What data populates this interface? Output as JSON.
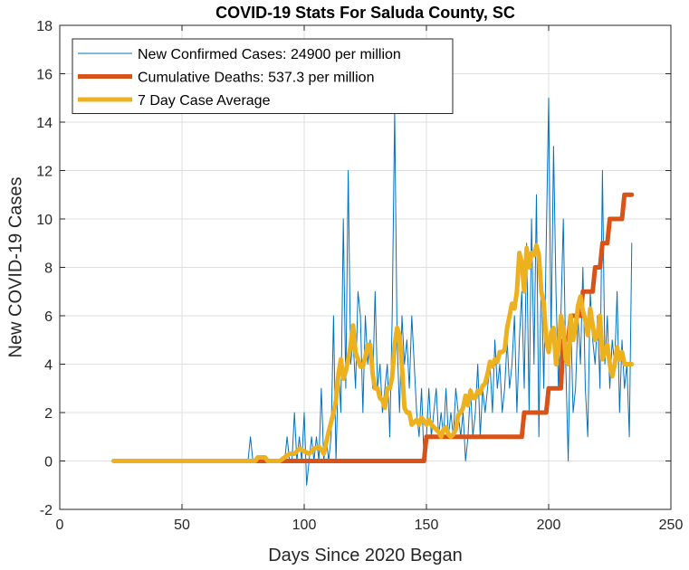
{
  "chart_data": {
    "type": "line",
    "title": "COVID-19 Stats For Saluda County, SC",
    "xlabel": "Days Since 2020 Began",
    "ylabel": "New COVID-19 Cases",
    "xlim": [
      0,
      250
    ],
    "ylim": [
      -2,
      18
    ],
    "xticks": [
      0,
      50,
      100,
      150,
      200,
      250
    ],
    "yticks": [
      -2,
      0,
      2,
      4,
      6,
      8,
      10,
      12,
      14,
      16,
      18
    ],
    "grid": true,
    "legend_position": "top-left",
    "series": [
      {
        "name": "New Confirmed Cases: 24900 per million",
        "color": "#0072BD",
        "style": "thin",
        "points": [
          [
            22,
            0
          ],
          [
            30,
            0
          ],
          [
            40,
            0
          ],
          [
            50,
            0
          ],
          [
            60,
            0
          ],
          [
            70,
            0
          ],
          [
            77,
            0
          ],
          [
            78,
            1
          ],
          [
            79,
            0
          ],
          [
            85,
            0
          ],
          [
            88,
            0
          ],
          [
            90,
            0
          ],
          [
            92,
            0
          ],
          [
            93,
            1
          ],
          [
            94,
            0
          ],
          [
            95,
            0
          ],
          [
            96,
            2
          ],
          [
            97,
            0
          ],
          [
            98,
            1
          ],
          [
            99,
            0
          ],
          [
            100,
            2
          ],
          [
            101,
            -1
          ],
          [
            102,
            0
          ],
          [
            103,
            1
          ],
          [
            104,
            0
          ],
          [
            105,
            1
          ],
          [
            106,
            0
          ],
          [
            107,
            3
          ],
          [
            108,
            0
          ],
          [
            109,
            1
          ],
          [
            110,
            0
          ],
          [
            111,
            1
          ],
          [
            112,
            6
          ],
          [
            113,
            0
          ],
          [
            114,
            4
          ],
          [
            115,
            2
          ],
          [
            116,
            10
          ],
          [
            117,
            3
          ],
          [
            118,
            12
          ],
          [
            119,
            4
          ],
          [
            120,
            5
          ],
          [
            121,
            3
          ],
          [
            122,
            7
          ],
          [
            123,
            6
          ],
          [
            124,
            2
          ],
          [
            125,
            6
          ],
          [
            126,
            4
          ],
          [
            127,
            5
          ],
          [
            128,
            3
          ],
          [
            129,
            7
          ],
          [
            130,
            3
          ],
          [
            131,
            4
          ],
          [
            132,
            2
          ],
          [
            133,
            3
          ],
          [
            134,
            4
          ],
          [
            135,
            1
          ],
          [
            136,
            6
          ],
          [
            137,
            14.5
          ],
          [
            138,
            5
          ],
          [
            139,
            2
          ],
          [
            140,
            6
          ],
          [
            141,
            4
          ],
          [
            142,
            5
          ],
          [
            143,
            3
          ],
          [
            144,
            6
          ],
          [
            145,
            4
          ],
          [
            146,
            2
          ],
          [
            147,
            1
          ],
          [
            148,
            3
          ],
          [
            149,
            0
          ],
          [
            150,
            1
          ],
          [
            151,
            3
          ],
          [
            152,
            1
          ],
          [
            153,
            2
          ],
          [
            154,
            3
          ],
          [
            155,
            1
          ],
          [
            156,
            2
          ],
          [
            157,
            1
          ],
          [
            158,
            3
          ],
          [
            159,
            1
          ],
          [
            160,
            2
          ],
          [
            161,
            1
          ],
          [
            162,
            3
          ],
          [
            163,
            2
          ],
          [
            164,
            1
          ],
          [
            165,
            2
          ],
          [
            166,
            0
          ],
          [
            167,
            1
          ],
          [
            168,
            3
          ],
          [
            169,
            1
          ],
          [
            170,
            2
          ],
          [
            171,
            4
          ],
          [
            172,
            1
          ],
          [
            173,
            3
          ],
          [
            174,
            2
          ],
          [
            175,
            3
          ],
          [
            176,
            4
          ],
          [
            177,
            2
          ],
          [
            178,
            5
          ],
          [
            179,
            3
          ],
          [
            180,
            4
          ],
          [
            181,
            2
          ],
          [
            182,
            3
          ],
          [
            183,
            5
          ],
          [
            184,
            3
          ],
          [
            185,
            4
          ],
          [
            186,
            6
          ],
          [
            187,
            2
          ],
          [
            188,
            5
          ],
          [
            189,
            7
          ],
          [
            190,
            3
          ],
          [
            191,
            9
          ],
          [
            192,
            2
          ],
          [
            193,
            10
          ],
          [
            194,
            4
          ],
          [
            195,
            11
          ],
          [
            196,
            1
          ],
          [
            197,
            8
          ],
          [
            198,
            3
          ],
          [
            199,
            9
          ],
          [
            200,
            15
          ],
          [
            201,
            5
          ],
          [
            202,
            13
          ],
          [
            203,
            7
          ],
          [
            204,
            3
          ],
          [
            205,
            6
          ],
          [
            206,
            10
          ],
          [
            207,
            4
          ],
          [
            208,
            0
          ],
          [
            209,
            6
          ],
          [
            210,
            2
          ],
          [
            211,
            3
          ],
          [
            212,
            6
          ],
          [
            213,
            4
          ],
          [
            214,
            8
          ],
          [
            215,
            3
          ],
          [
            216,
            1
          ],
          [
            217,
            7
          ],
          [
            218,
            5
          ],
          [
            219,
            4
          ],
          [
            220,
            6
          ],
          [
            221,
            3
          ],
          [
            222,
            12
          ],
          [
            223,
            4
          ],
          [
            224,
            6
          ],
          [
            225,
            3
          ],
          [
            226,
            5
          ],
          [
            227,
            4
          ],
          [
            228,
            7
          ],
          [
            229,
            2
          ],
          [
            230,
            5
          ],
          [
            231,
            3
          ],
          [
            232,
            4
          ],
          [
            233,
            1
          ],
          [
            234,
            9
          ]
        ]
      },
      {
        "name": "Cumulative Deaths: 537.3 per million",
        "color": "#D95319",
        "style": "thick",
        "points": [
          [
            80,
            0
          ],
          [
            149,
            0
          ],
          [
            150,
            1
          ],
          [
            189,
            1
          ],
          [
            190,
            2
          ],
          [
            199,
            2
          ],
          [
            200,
            3
          ],
          [
            205,
            3
          ],
          [
            206,
            5
          ],
          [
            208,
            5
          ],
          [
            209,
            6
          ],
          [
            213,
            6
          ],
          [
            214,
            7
          ],
          [
            216,
            7
          ],
          [
            217,
            7
          ],
          [
            218,
            7
          ],
          [
            219,
            8
          ],
          [
            221,
            8
          ],
          [
            222,
            9
          ],
          [
            223,
            9
          ],
          [
            224,
            9
          ],
          [
            225,
            10
          ],
          [
            229,
            10
          ],
          [
            230,
            10
          ],
          [
            231,
            11
          ],
          [
            234,
            11
          ]
        ]
      },
      {
        "name": "7 Day Case Average",
        "color": "#EDB120",
        "style": "thick",
        "points": [
          [
            22,
            0
          ],
          [
            40,
            0
          ],
          [
            60,
            0
          ],
          [
            75,
            0
          ],
          [
            80,
            0
          ],
          [
            81,
            0.15
          ],
          [
            84,
            0.15
          ],
          [
            85,
            0
          ],
          [
            90,
            0
          ],
          [
            92,
            0.15
          ],
          [
            94,
            0.3
          ],
          [
            96,
            0.3
          ],
          [
            98,
            0.5
          ],
          [
            100,
            0.4
          ],
          [
            102,
            0.3
          ],
          [
            104,
            0.5
          ],
          [
            106,
            0.6
          ],
          [
            108,
            0.3
          ],
          [
            110,
            1.2
          ],
          [
            112,
            2.0
          ],
          [
            113,
            2.5
          ],
          [
            114,
            3.6
          ],
          [
            115,
            4.2
          ],
          [
            116,
            3.4
          ],
          [
            117,
            3.7
          ],
          [
            118,
            4.2
          ],
          [
            119,
            4.8
          ],
          [
            120,
            5.6
          ],
          [
            121,
            4.5
          ],
          [
            122,
            4.2
          ],
          [
            123,
            3.9
          ],
          [
            124,
            3.9
          ],
          [
            125,
            4.3
          ],
          [
            126,
            4.8
          ],
          [
            127,
            4.8
          ],
          [
            128,
            3.6
          ],
          [
            129,
            3.0
          ],
          [
            130,
            3.0
          ],
          [
            131,
            2.6
          ],
          [
            132,
            2.5
          ],
          [
            133,
            2.2
          ],
          [
            134,
            3.0
          ],
          [
            135,
            3.0
          ],
          [
            136,
            3.5
          ],
          [
            137,
            4.8
          ],
          [
            138,
            5.5
          ],
          [
            139,
            5.2
          ],
          [
            140,
            3.9
          ],
          [
            141,
            2.2
          ],
          [
            142,
            2.0
          ],
          [
            143,
            2.0
          ],
          [
            144,
            1.5
          ],
          [
            146,
            1.7
          ],
          [
            147,
            1.5
          ],
          [
            148,
            1.8
          ],
          [
            150,
            1.5
          ],
          [
            151,
            1.7
          ],
          [
            152,
            1.5
          ],
          [
            153,
            1.4
          ],
          [
            155,
            1.2
          ],
          [
            156,
            1.0
          ],
          [
            157,
            1.3
          ],
          [
            158,
            1.4
          ],
          [
            159,
            1.1
          ],
          [
            160,
            1.0
          ],
          [
            161,
            1.1
          ],
          [
            162,
            1.3
          ],
          [
            163,
            1.9
          ],
          [
            164,
            2.0
          ],
          [
            165,
            2.2
          ],
          [
            166,
            2.7
          ],
          [
            167,
            2.3
          ],
          [
            168,
            2.9
          ],
          [
            169,
            2.6
          ],
          [
            170,
            2.6
          ],
          [
            171,
            2.9
          ],
          [
            172,
            2.8
          ],
          [
            173,
            3.1
          ],
          [
            174,
            3.2
          ],
          [
            175,
            3.6
          ],
          [
            176,
            4.1
          ],
          [
            177,
            3.9
          ],
          [
            178,
            4.2
          ],
          [
            179,
            4.1
          ],
          [
            180,
            4.5
          ],
          [
            181,
            4.5
          ],
          [
            182,
            4.6
          ],
          [
            183,
            5.5
          ],
          [
            184,
            6.0
          ],
          [
            185,
            6.5
          ],
          [
            186,
            6.3
          ],
          [
            187,
            7.0
          ],
          [
            188,
            8.6
          ],
          [
            189,
            8.2
          ],
          [
            190,
            7.0
          ],
          [
            191,
            8.8
          ],
          [
            192,
            8.0
          ],
          [
            193,
            8.6
          ],
          [
            194,
            8.5
          ],
          [
            195,
            8.9
          ],
          [
            196,
            8.5
          ],
          [
            197,
            7.0
          ],
          [
            198,
            6.5
          ],
          [
            199,
            5.0
          ],
          [
            200,
            4.5
          ],
          [
            201,
            5.3
          ],
          [
            202,
            5.5
          ],
          [
            203,
            4.0
          ],
          [
            204,
            4.6
          ],
          [
            205,
            6.0
          ],
          [
            206,
            5.5
          ],
          [
            207,
            4.2
          ],
          [
            208,
            4.0
          ],
          [
            209,
            6.0
          ],
          [
            210,
            5.0
          ],
          [
            211,
            5.5
          ],
          [
            212,
            6.4
          ],
          [
            213,
            6.8
          ],
          [
            214,
            6.2
          ],
          [
            215,
            5.8
          ],
          [
            216,
            5.2
          ],
          [
            217,
            6.3
          ],
          [
            218,
            5.6
          ],
          [
            219,
            5.0
          ],
          [
            220,
            5.2
          ],
          [
            221,
            6.0
          ],
          [
            222,
            4.2
          ],
          [
            223,
            4.5
          ],
          [
            224,
            4.8
          ],
          [
            225,
            4.0
          ],
          [
            226,
            3.5
          ],
          [
            227,
            4.0
          ],
          [
            228,
            4.7
          ],
          [
            229,
            4.2
          ],
          [
            230,
            4.5
          ],
          [
            231,
            4.0
          ],
          [
            232,
            4.0
          ],
          [
            233,
            4.0
          ],
          [
            234,
            4.0
          ]
        ]
      }
    ]
  }
}
